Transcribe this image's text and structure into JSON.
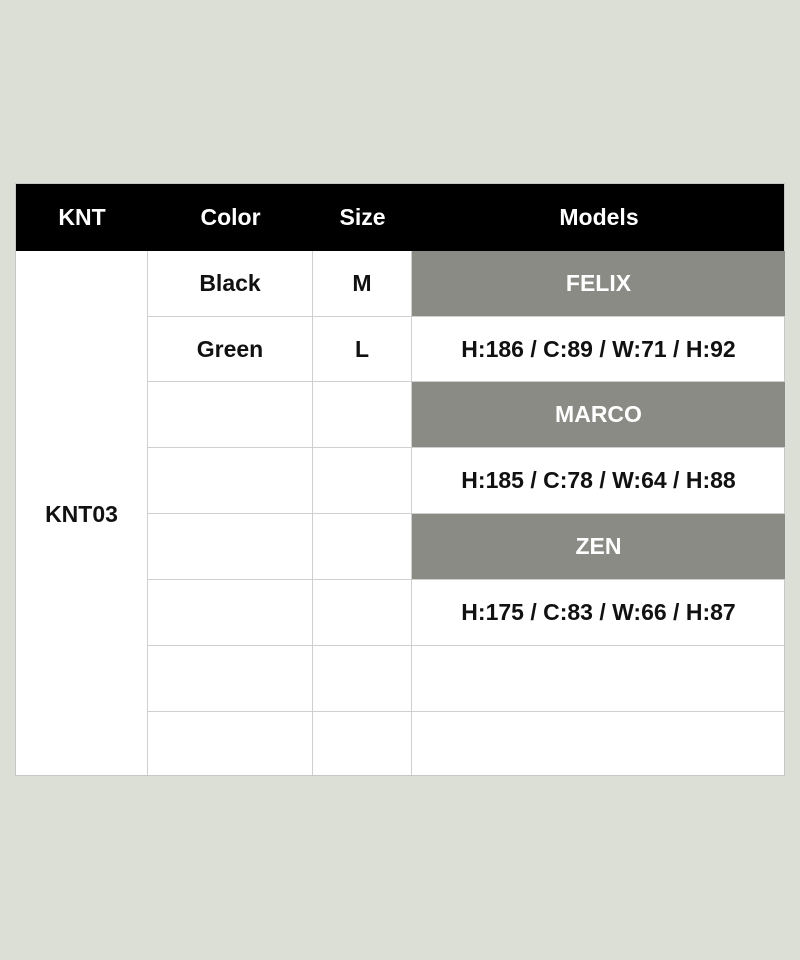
{
  "header": [
    "KNT",
    "Color",
    "Size",
    "Models"
  ],
  "product": "KNT03",
  "colors": [
    "Black",
    "Green"
  ],
  "sizes": [
    "M",
    "L"
  ],
  "models": [
    {
      "name": "FELIX",
      "measurements": "H:186 / C:89 / W:71 / H:92"
    },
    {
      "name": "MARCO",
      "measurements": "H:185 / C:78 / W:64 / H:88"
    },
    {
      "name": "ZEN",
      "measurements": "H:175 / C:83 / W:66 / H:87"
    }
  ],
  "colors_theme": {
    "header_bg": "#000000",
    "model_bg": "#8a8b84",
    "page_bg": "#dcdfd5"
  }
}
